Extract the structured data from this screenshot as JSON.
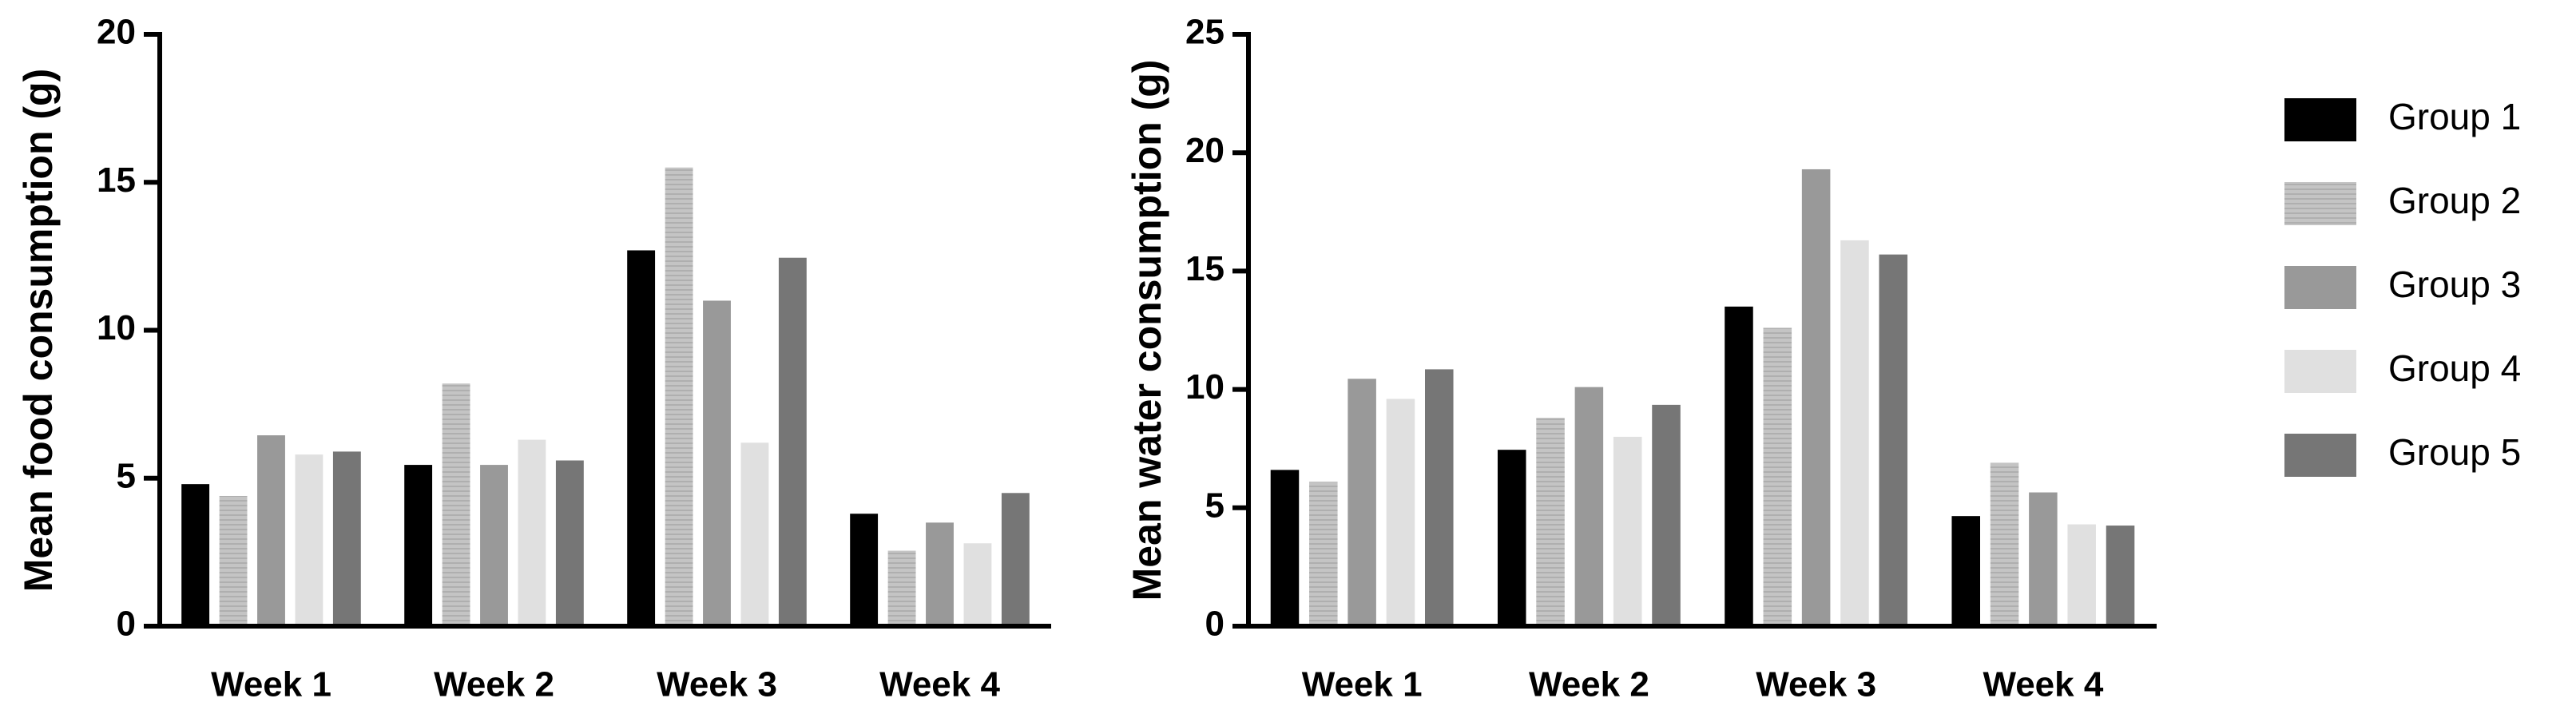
{
  "chart_data": [
    {
      "type": "bar",
      "y_label": "Mean food consumption (g)",
      "categories": [
        "Week 1",
        "Week 2",
        "Week 3",
        "Week 4"
      ],
      "ylim": [
        0,
        20
      ],
      "yticks": [
        0,
        5,
        10,
        15,
        20
      ],
      "series": [
        {
          "name": "Group 1",
          "color": "#000000",
          "values": [
            4.8,
            5.45,
            12.7,
            3.8
          ]
        },
        {
          "name": "Group 2",
          "color": "#bdbdbd",
          "values": [
            4.4,
            8.2,
            15.5,
            2.55
          ]
        },
        {
          "name": "Group 3",
          "color": "#999999",
          "values": [
            6.45,
            5.45,
            11.0,
            3.5
          ]
        },
        {
          "name": "Group 4",
          "color": "#e0e0e0",
          "values": [
            5.8,
            6.3,
            6.2,
            2.8
          ]
        },
        {
          "name": "Group 5",
          "color": "#767676",
          "values": [
            5.9,
            5.6,
            12.45,
            4.5
          ]
        }
      ]
    },
    {
      "type": "bar",
      "y_label": "Mean water consumption (g)",
      "categories": [
        "Week 1",
        "Week 2",
        "Week 3",
        "Week 4"
      ],
      "ylim": [
        0,
        25
      ],
      "yticks": [
        0,
        5,
        10,
        15,
        20,
        25
      ],
      "series": [
        {
          "color": "#000000",
          "values": [
            6.6,
            7.45,
            13.5,
            4.65
          ]
        },
        {
          "color": "#bdbdbd",
          "values": [
            6.1,
            8.8,
            12.6,
            6.9
          ]
        },
        {
          "color": "#999999",
          "values": [
            10.45,
            10.1,
            19.3,
            5.65
          ]
        },
        {
          "color": "#e0e0e0",
          "values": [
            9.6,
            8.0,
            16.3,
            4.3
          ]
        },
        {
          "color": "#767676",
          "values": [
            10.85,
            9.35,
            15.7,
            4.25
          ]
        }
      ]
    }
  ]
}
